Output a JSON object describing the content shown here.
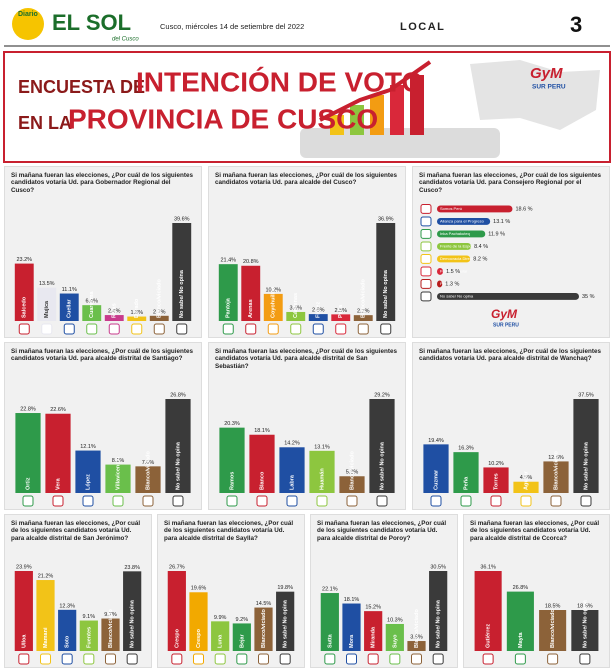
{
  "header": {
    "brand_top": "Diario",
    "brand": "EL SOL",
    "brand_sub": "del Cusco",
    "date": "Cusco, miércoles 14 de setiembre del 2022",
    "section": "LOCAL",
    "page": "3"
  },
  "banner": {
    "line1a": "ENCUESTA DE",
    "line1b": "INTENCIÓN DE VOTO",
    "line2a": "EN LA",
    "line2b": "PROVINCIA DE CUSCO",
    "logo": "GyM",
    "logo_sub": "SUR PERU"
  },
  "chart_data": [
    {
      "type": "bar",
      "title": "Si mañana fueran las elecciones, ¿Por cuál de los siguientes candidatos votaría Ud. para Gobernador Regional del Cusco?",
      "categories": [
        "Salcedo",
        "Mujica",
        "Cuellar",
        "Cuaresma",
        "Rivas",
        "Dorado",
        "Blanco/viciado",
        "No sabe/ No opina"
      ],
      "values": [
        23.2,
        13.5,
        11.1,
        6.4,
        2.4,
        1.8,
        2.1,
        39.6
      ],
      "value_labels": [
        "23.2%",
        "13.5%",
        "11.1%",
        "6.4%",
        "2.4%",
        "1.8%",
        "2.1%",
        "39.6%"
      ],
      "colors": [
        "#c8202f",
        "#e8e8f0",
        "#1f4fa3",
        "#6abf4b",
        "#c83a8c",
        "#f2c318",
        "#8c6239",
        "#3a3a3a"
      ]
    },
    {
      "type": "bar",
      "title": "Si mañana fueran las elecciones, ¿Por cuál de los siguientes candidatos votaría Ud. para alcalde del Cusco?",
      "categories": [
        "Pantoja",
        "Arenas",
        "Coyohuillca",
        "Cárdenas",
        "Flórez",
        "Peña",
        "Blanco/viciado",
        "No sabe/ No opina"
      ],
      "values": [
        21.4,
        20.8,
        10.2,
        3.4,
        2.6,
        2.5,
        2.2,
        36.9
      ],
      "value_labels": [
        "21.4%",
        "20.8%",
        "10.2%",
        "3.4%",
        "2.6%",
        "2.5%",
        "2.2%",
        "36.9%"
      ],
      "colors": [
        "#2e9a4a",
        "#c8202f",
        "#f39c12",
        "#8dc63f",
        "#1f4fa3",
        "#d9283a",
        "#8c6239",
        "#3a3a3a"
      ]
    },
    {
      "type": "hbar",
      "title": "Si mañana fueran las elecciones, ¿Por cuál de los siguientes candidatos votaría Ud. para Consejero Regional por el Cusco?",
      "categories": [
        "Somos Perú",
        "Alianza para el Progreso",
        "Inka Pachakuteq",
        "Frente de la Esperanza",
        "Democracia Directa",
        "Fuerza Popular",
        "Perú Libre",
        "No sabe/ No opina"
      ],
      "values": [
        18.6,
        13.1,
        11.9,
        8.4,
        8.2,
        1.5,
        1.3,
        35
      ],
      "value_labels": [
        "18.6 %",
        "13.1 %",
        "11.9 %",
        "8.4 %",
        "8.2 %",
        "1.5 %",
        "1.3 %",
        "35 %"
      ],
      "colors": [
        "#c8202f",
        "#1f4fa3",
        "#2e9a4a",
        "#8dc63f",
        "#f2c318",
        "#d9283a",
        "#b71c1c",
        "#3a3a3a"
      ]
    },
    {
      "type": "bar",
      "title": "Si mañana fueran las elecciones, ¿Por cuál de los siguientes candidatos votaría Ud. para alcalde distrital de Santiago?",
      "categories": [
        "Ortiz",
        "Vera",
        "López",
        "Villavicencio",
        "Blanco/viciado",
        "No sabe/ No opina"
      ],
      "values": [
        22.8,
        22.6,
        12.1,
        8.1,
        7.6,
        26.8
      ],
      "value_labels": [
        "22.8%",
        "22.6%",
        "12.1%",
        "8.1%",
        "7.6%",
        "26.8%"
      ],
      "colors": [
        "#2e9a4a",
        "#c8202f",
        "#1f4fa3",
        "#6abf4b",
        "#8c6239",
        "#3a3a3a"
      ]
    },
    {
      "type": "bar",
      "title": "Si mañana fueran las elecciones, ¿Por cuál de los siguientes candidatos votaría Ud. para alcalde distrital de San Sebastián?",
      "categories": [
        "Ramos",
        "Blanco",
        "Labra",
        "Huamán",
        "Blanco/viciado",
        "No sabe/ No opina"
      ],
      "values": [
        20.3,
        18.1,
        14.2,
        13.1,
        5.2,
        29.2
      ],
      "value_labels": [
        "20.3%",
        "18.1%",
        "14.2%",
        "13.1%",
        "5.2%",
        "29.2%"
      ],
      "colors": [
        "#2e9a4a",
        "#c8202f",
        "#1f4fa3",
        "#8dc63f",
        "#8c6239",
        "#3a3a3a"
      ]
    },
    {
      "type": "bar",
      "title": "Si mañana fueran las elecciones, ¿Por cuál de los siguientes candidatos votaría Ud. para alcalde distrital de Wanchaq?",
      "categories": [
        "Cuzmar",
        "Peña",
        "Torres",
        "Aguilar",
        "Blanco/viciado",
        "No sabe/ No opina"
      ],
      "values": [
        19.4,
        16.3,
        10.2,
        4.5,
        12.6,
        37.5
      ],
      "value_labels": [
        "19.4%",
        "16.3%",
        "10.2%",
        "4.5%",
        "12.6%",
        "37.5%"
      ],
      "colors": [
        "#1f4fa3",
        "#2e9a4a",
        "#c8202f",
        "#f2c318",
        "#8c6239",
        "#3a3a3a"
      ]
    },
    {
      "type": "bar",
      "title": "Si mañana fueran las elecciones, ¿Por cuál de los siguientes candidatos votaría Ud. para alcalde distrital de San Jerónimo?",
      "categories": [
        "Ulloa",
        "Mamani",
        "Soto",
        "Fuentes",
        "Blanco/viciado",
        "No sabe/ No opina"
      ],
      "values": [
        23.9,
        21.2,
        12.3,
        9.1,
        9.7,
        23.8
      ],
      "value_labels": [
        "23.9%",
        "21.2%",
        "12.3%",
        "9.1%",
        "9.7%",
        "23.8%"
      ],
      "colors": [
        "#c8202f",
        "#f2c318",
        "#1f4fa3",
        "#8dc63f",
        "#8c6239",
        "#3a3a3a"
      ]
    },
    {
      "type": "bar",
      "title": "Si mañana fueran las elecciones, ¿Por cuál de los siguientes candidatos votaría Ud. para alcalde distrital de Saylla?",
      "categories": [
        "Crespo",
        "Crespo",
        "Luna",
        "Bejar",
        "Blanco/viciado",
        "No sabe/ No opina"
      ],
      "values": [
        26.7,
        19.6,
        9.9,
        9.2,
        14.5,
        19.8
      ],
      "value_labels": [
        "26.7%",
        "19.6%",
        "9.9%",
        "9.2%",
        "14.5%",
        "19.8%"
      ],
      "colors": [
        "#c8202f",
        "#f2a900",
        "#8dc63f",
        "#2e9a4a",
        "#8c6239",
        "#3a3a3a"
      ]
    },
    {
      "type": "bar",
      "title": "Si mañana fueran las elecciones, ¿Por cuál de los siguientes candidatos votaría Ud. para alcalde distrital de Poroy?",
      "categories": [
        "Sutta",
        "Mora",
        "Miranda",
        "Suyo",
        "Blanco/viciado",
        "No sabe/ No opina"
      ],
      "values": [
        22.1,
        18.1,
        15.2,
        10.3,
        3.8,
        30.5
      ],
      "value_labels": [
        "22.1%",
        "18.1%",
        "15.2%",
        "10.3%",
        "3.8%",
        "30.5%"
      ],
      "colors": [
        "#2e9a4a",
        "#1f4fa3",
        "#c8202f",
        "#6abf4b",
        "#8c6239",
        "#3a3a3a"
      ]
    },
    {
      "type": "bar",
      "title": "Si mañana fueran las elecciones, ¿Por cuál de los siguientes candidatos votaría Ud. para alcalde distrital de Ccorca?",
      "categories": [
        "Gutiérrez",
        "Mayta",
        "Blanco/viciado",
        "No sabe/ No opina"
      ],
      "values": [
        36.1,
        26.8,
        18.5,
        18.5
      ],
      "value_labels": [
        "36.1%",
        "26.8%",
        "18.5%",
        "18.5%"
      ],
      "colors": [
        "#c8202f",
        "#2e9a4a",
        "#8c6239",
        "#3a3a3a"
      ]
    }
  ]
}
